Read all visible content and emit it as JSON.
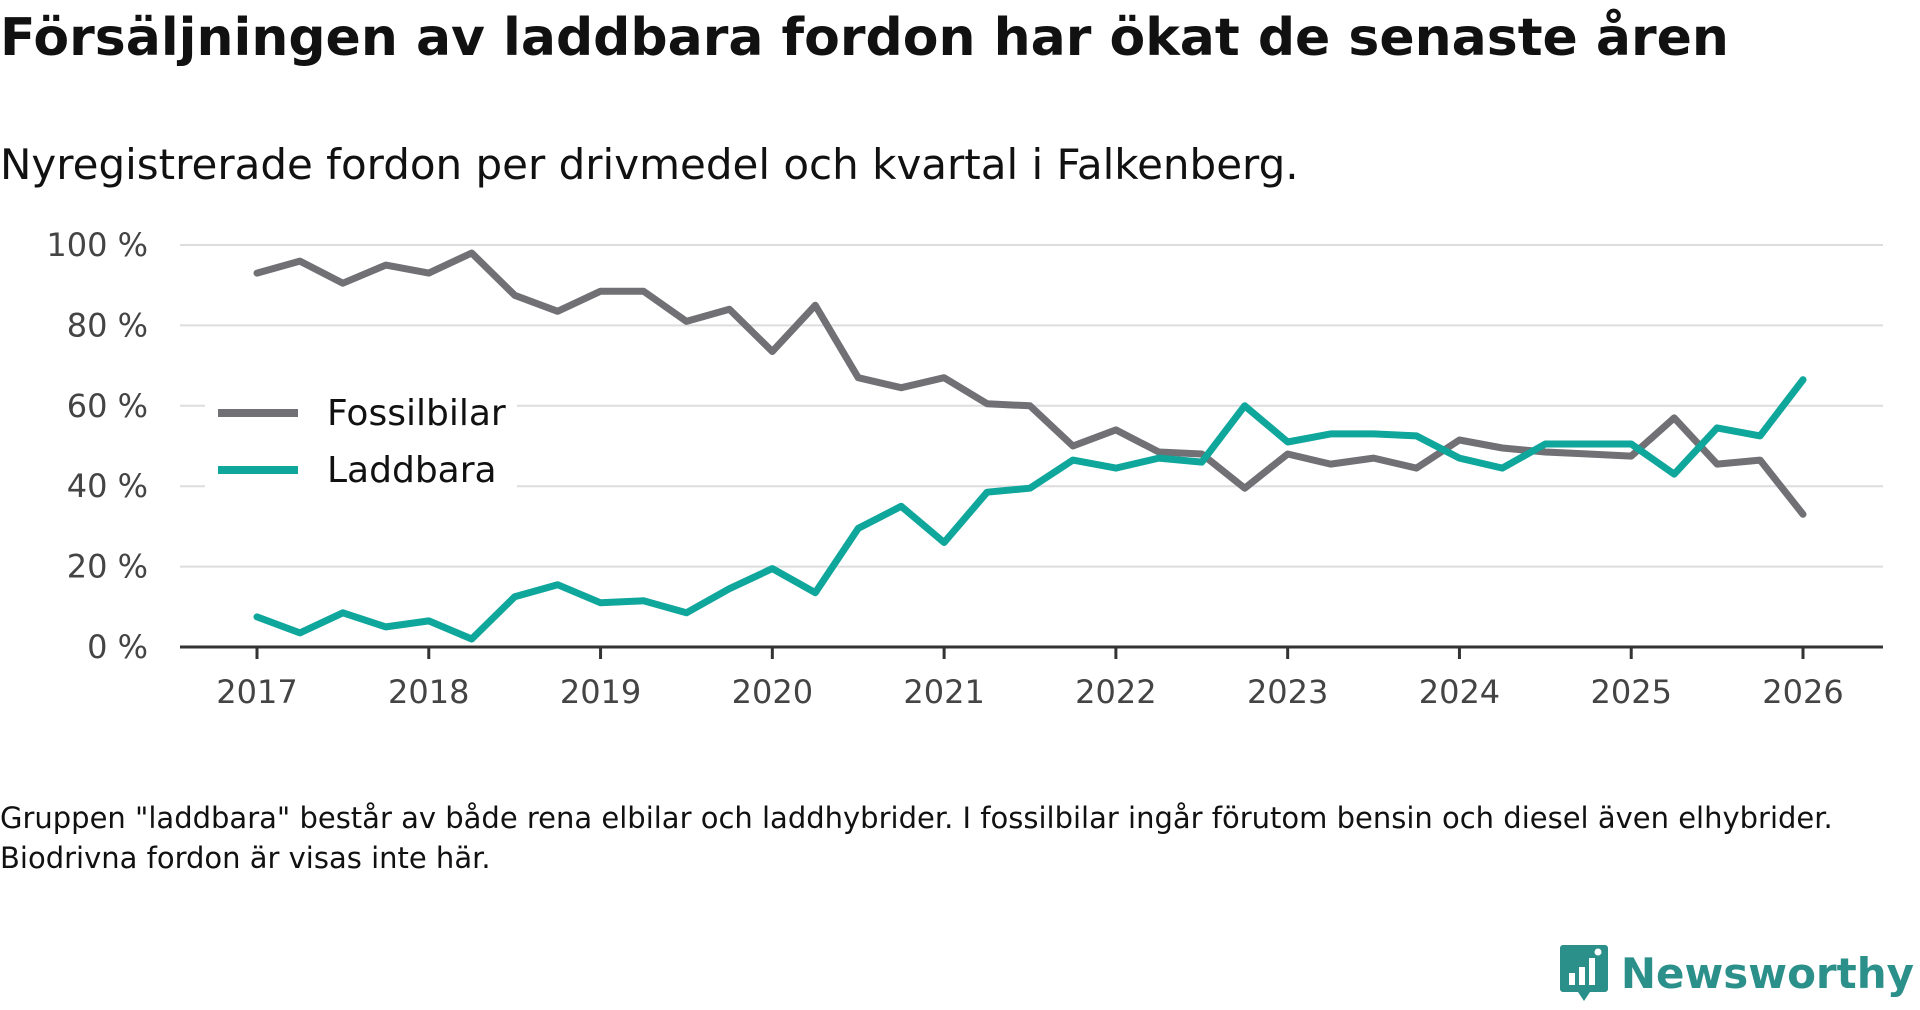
{
  "title": "Försäljningen av laddbara fordon har ökat de senaste åren",
  "subtitle": "Nyregistrerade fordon per drivmedel och kvartal i Falkenberg.",
  "note": "Gruppen \"laddbara\" består av både rena elbilar och laddhybrider. I fossilbilar ingår förutom bensin och diesel även elhybrider. Biodrivna fordon är visas inte här.",
  "brand": "Newsworthy",
  "colors": {
    "fossil": "#707075",
    "laddbara": "#0fa69b",
    "grid": "#dddddd",
    "axis": "#333333",
    "brand": "#2b8f8a"
  },
  "chart_data": {
    "type": "line",
    "x": [
      2017,
      2017.25,
      2017.5,
      2017.75,
      2018,
      2018.25,
      2018.5,
      2018.75,
      2019,
      2019.25,
      2019.5,
      2019.75,
      2020,
      2020.25,
      2020.5,
      2020.75,
      2021,
      2021.25,
      2021.5,
      2021.75,
      2022,
      2022.25,
      2022.5,
      2022.75,
      2023,
      2023.25,
      2023.5,
      2023.75,
      2024,
      2024.25,
      2024.5,
      2024.75,
      2025,
      2025.25,
      2025.5,
      2025.75,
      2026
    ],
    "series": [
      {
        "name": "Fossilbilar",
        "color": "#707075",
        "values": [
          93,
          96,
          90.5,
          95,
          93,
          98,
          87.5,
          83.5,
          88.5,
          88.5,
          81,
          84,
          73.5,
          85,
          67,
          64.5,
          67,
          60.5,
          60,
          50,
          54,
          48.5,
          48,
          39.5,
          48,
          45.5,
          47,
          44.5,
          51.5,
          49.5,
          48.5,
          48,
          47.5,
          57,
          45.5,
          46.5,
          33
        ]
      },
      {
        "name": "Laddbara",
        "color": "#0fa69b",
        "values": [
          7.5,
          3.5,
          8.5,
          5,
          6.5,
          2,
          12.5,
          15.5,
          11,
          11.5,
          8.5,
          14.5,
          19.5,
          13.5,
          29.5,
          35,
          26,
          38.5,
          39.5,
          46.5,
          44.5,
          47,
          46,
          60,
          51,
          53,
          53,
          52.5,
          47,
          44.5,
          50.5,
          50.5,
          50.5,
          43,
          54.5,
          52.5,
          66.5
        ]
      }
    ],
    "yticks": [
      0,
      20,
      40,
      60,
      80,
      100
    ],
    "ytick_labels": [
      "0 %",
      "20 %",
      "40 %",
      "60 %",
      "80 %",
      "100 %"
    ],
    "xticks": [
      2017,
      2018,
      2019,
      2020,
      2021,
      2022,
      2023,
      2024,
      2025,
      2026
    ],
    "xtick_labels": [
      "2017",
      "2018",
      "2019",
      "2020",
      "2021",
      "2022",
      "2023",
      "2024",
      "2025",
      "2026"
    ],
    "ylim": [
      0,
      100
    ],
    "xlim": [
      2016.55,
      2026.45
    ],
    "xlabel": "",
    "ylabel": "",
    "legend": [
      "Fossilbilar",
      "Laddbara"
    ],
    "legend_position": "middle-left",
    "grid": true
  }
}
